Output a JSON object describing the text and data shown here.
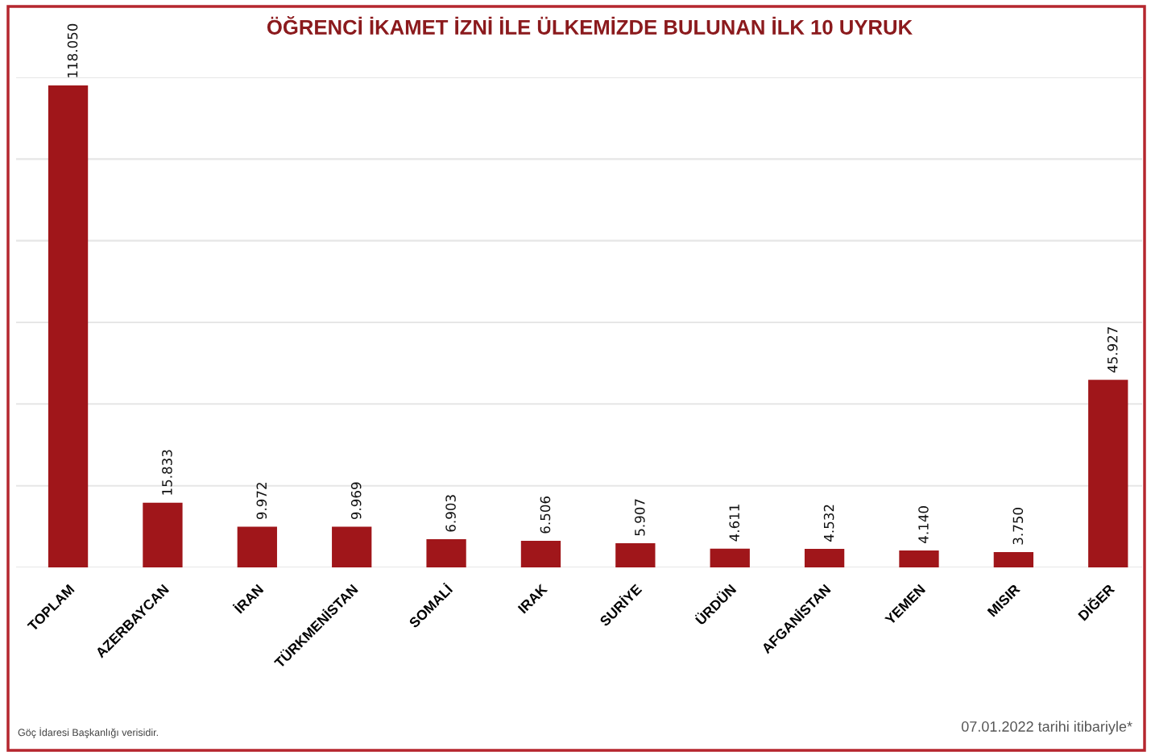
{
  "chart_data": {
    "type": "bar",
    "title": "ÖĞRENCİ İKAMET İZNİ İLE ÜLKEMİZDE BULUNAN İLK 10 UYRUK",
    "categories": [
      "TOPLAM",
      "AZERBAYCAN",
      "İRAN",
      "TÜRKMENİSTAN",
      "SOMALİ",
      "IRAK",
      "SURİYE",
      "ÜRDÜN",
      "AFGANİSTAN",
      "YEMEN",
      "MISIR",
      "DİĞER"
    ],
    "values": [
      118050,
      15833,
      9972,
      9969,
      6903,
      6506,
      5907,
      4611,
      4532,
      4140,
      3750,
      45927
    ],
    "value_labels": [
      "118.050",
      "15.833",
      "9.972",
      "9.969",
      "6.903",
      "6.506",
      "5.907",
      "4.611",
      "4.532",
      "4.140",
      "3.750",
      "45.927"
    ],
    "color": "#a0161a",
    "ylim": [
      0,
      120000
    ],
    "yticks": [
      {
        "value": 0,
        "label": null
      },
      {
        "value": 20000,
        "label": null
      },
      {
        "value": 40000,
        "label": null
      },
      {
        "value": 60000,
        "label": null
      },
      {
        "value": 80000,
        "label": null
      },
      {
        "value": 100000,
        "label": null
      },
      {
        "value": 120000,
        "label": null
      }
    ],
    "grid": "y",
    "tick_labels": "x",
    "annotations": [
      "Göç İdaresi Başkanlığı verisidir.",
      "07.01.2022 tarihi itibariyle*"
    ]
  }
}
